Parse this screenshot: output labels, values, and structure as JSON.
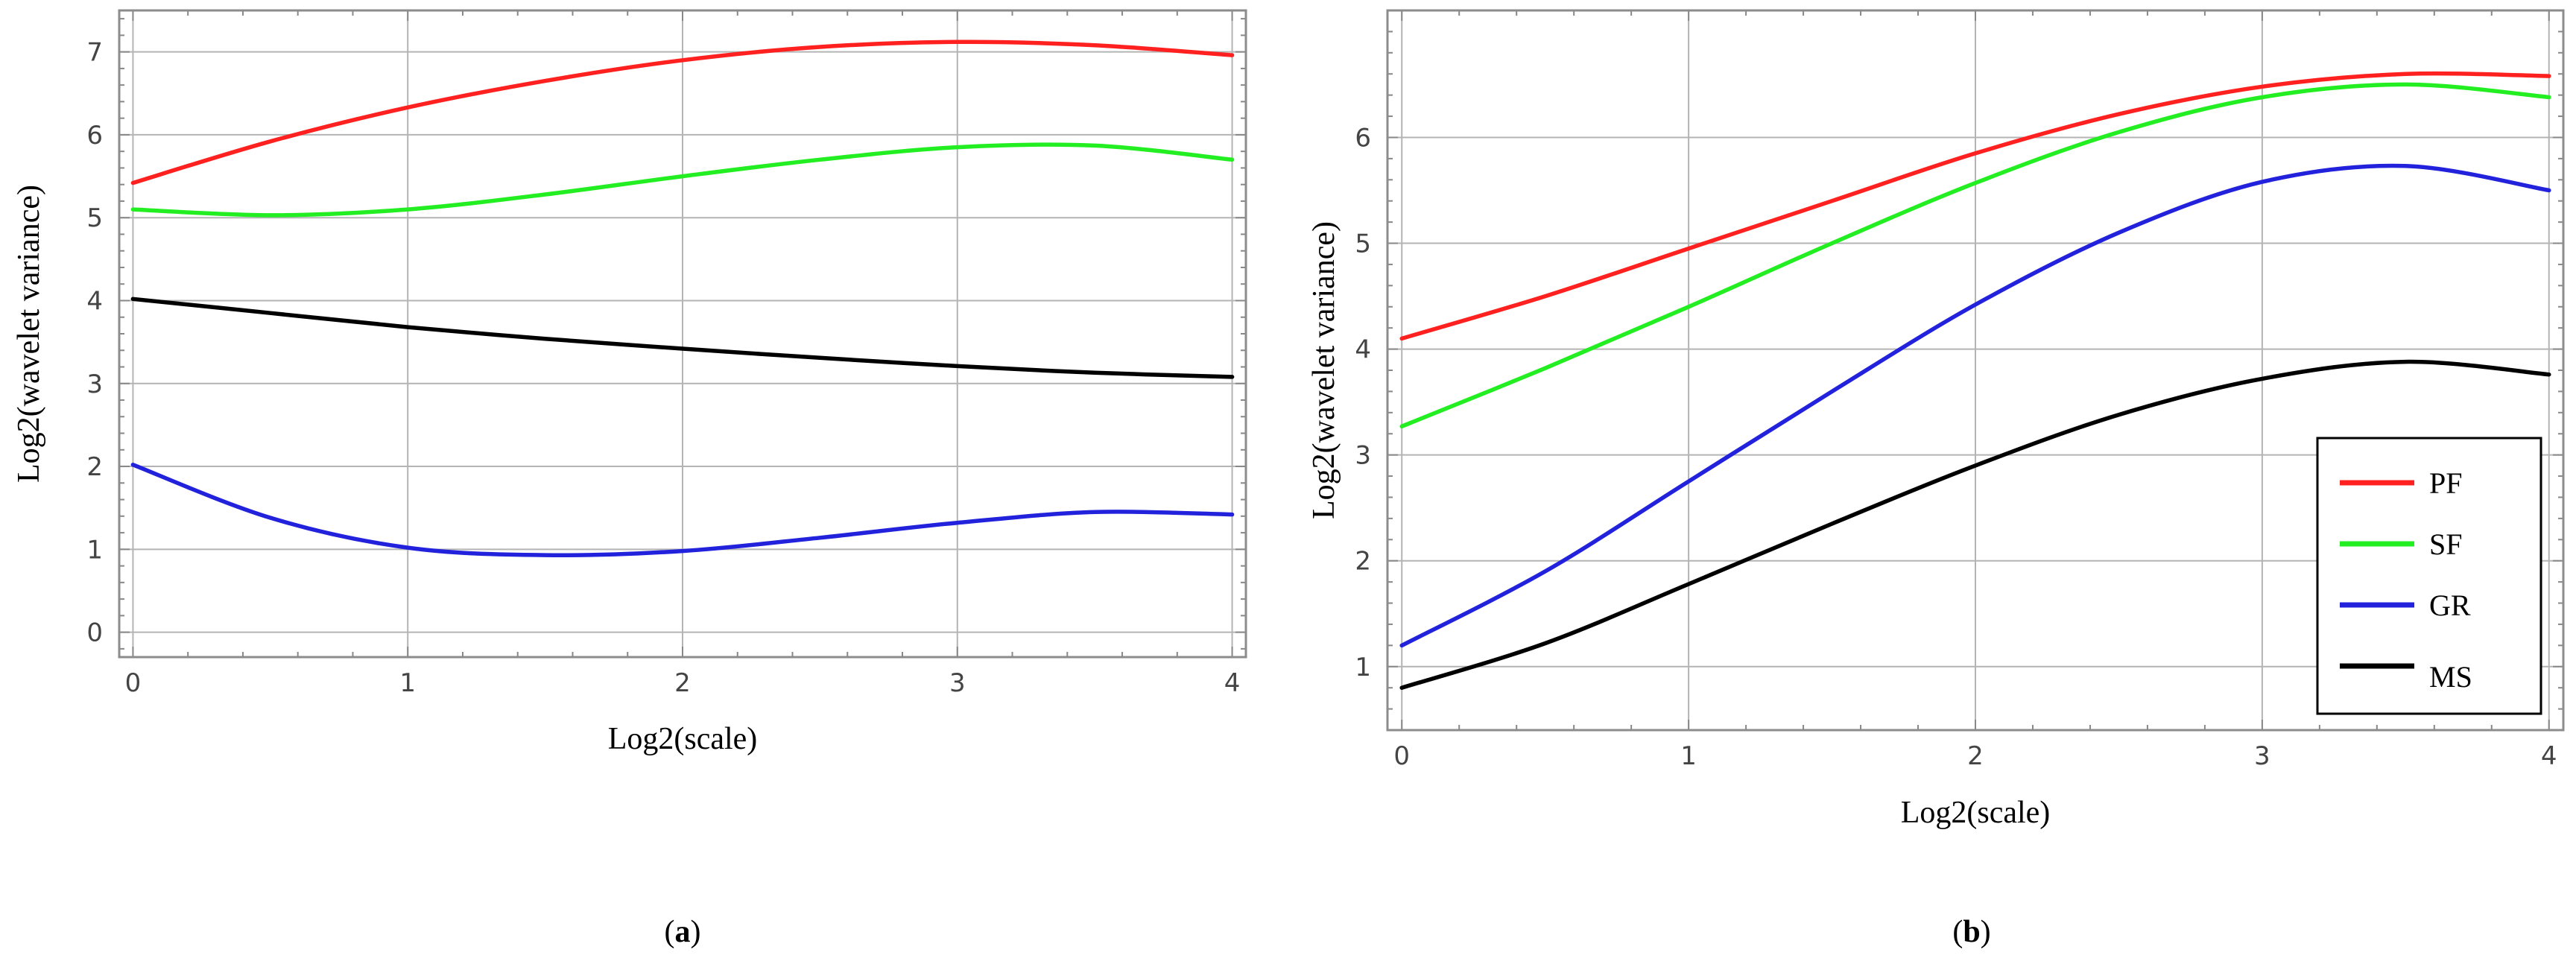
{
  "chart_data": [
    {
      "type": "line",
      "panel_label": "a",
      "xlabel": "Log2(scale)",
      "ylabel": "Log2(wavelet variance)",
      "xlim": [
        -0.05,
        4.05
      ],
      "ylim": [
        -0.3,
        7.5
      ],
      "xticks": [
        0,
        1,
        2,
        3,
        4
      ],
      "yticks": [
        0,
        1,
        2,
        3,
        4,
        5,
        6,
        7
      ],
      "grid": true,
      "legend": null,
      "series": [
        {
          "color": "#ff2020",
          "x": [
            0,
            0.5,
            1,
            1.5,
            2,
            2.5,
            3,
            3.5,
            4
          ],
          "y": [
            5.42,
            5.92,
            6.33,
            6.65,
            6.9,
            7.06,
            7.12,
            7.08,
            6.96
          ]
        },
        {
          "color": "#22ee22",
          "x": [
            0,
            0.5,
            1,
            1.5,
            2,
            2.5,
            3,
            3.5,
            4
          ],
          "y": [
            5.1,
            5.03,
            5.1,
            5.28,
            5.5,
            5.7,
            5.85,
            5.87,
            5.7
          ]
        },
        {
          "color": "#000000",
          "x": [
            0,
            0.5,
            1,
            1.5,
            2,
            2.5,
            3,
            3.5,
            4
          ],
          "y": [
            4.02,
            3.85,
            3.68,
            3.54,
            3.42,
            3.31,
            3.21,
            3.13,
            3.08
          ]
        },
        {
          "color": "#2222dd",
          "x": [
            0,
            0.5,
            1,
            1.5,
            2,
            2.5,
            3,
            3.5,
            4
          ],
          "y": [
            2.02,
            1.38,
            1.02,
            0.93,
            0.98,
            1.14,
            1.32,
            1.45,
            1.42
          ]
        }
      ]
    },
    {
      "type": "line",
      "panel_label": "b",
      "xlabel": "Log2(scale)",
      "ylabel": "Log2(wavelet variance)",
      "xlim": [
        -0.05,
        4.05
      ],
      "ylim": [
        0.4,
        7.2
      ],
      "xticks": [
        0,
        1,
        2,
        3,
        4
      ],
      "yticks": [
        1,
        2,
        3,
        4,
        5,
        6
      ],
      "grid": true,
      "legend": "bottom-right",
      "series": [
        {
          "name": "PF",
          "color": "#ff2020",
          "x": [
            0,
            0.5,
            1,
            1.5,
            2,
            2.5,
            3,
            3.5,
            4
          ],
          "y": [
            4.1,
            4.5,
            4.95,
            5.4,
            5.85,
            6.22,
            6.48,
            6.6,
            6.58
          ]
        },
        {
          "name": "SF",
          "color": "#22ee22",
          "x": [
            0,
            0.5,
            1,
            1.5,
            2,
            2.5,
            3,
            3.5,
            4
          ],
          "y": [
            3.27,
            3.82,
            4.4,
            5.0,
            5.57,
            6.05,
            6.38,
            6.5,
            6.38
          ]
        },
        {
          "name": "GR",
          "color": "#2222dd",
          "x": [
            0,
            0.5,
            1,
            1.5,
            2,
            2.5,
            3,
            3.5,
            4
          ],
          "y": [
            1.2,
            1.9,
            2.75,
            3.6,
            4.42,
            5.1,
            5.58,
            5.73,
            5.5
          ]
        },
        {
          "name": "MS",
          "color": "#000000",
          "x": [
            0,
            0.5,
            1,
            1.5,
            2,
            2.5,
            3,
            3.5,
            4
          ],
          "y": [
            0.8,
            1.22,
            1.78,
            2.35,
            2.9,
            3.38,
            3.72,
            3.88,
            3.76
          ]
        }
      ]
    }
  ]
}
